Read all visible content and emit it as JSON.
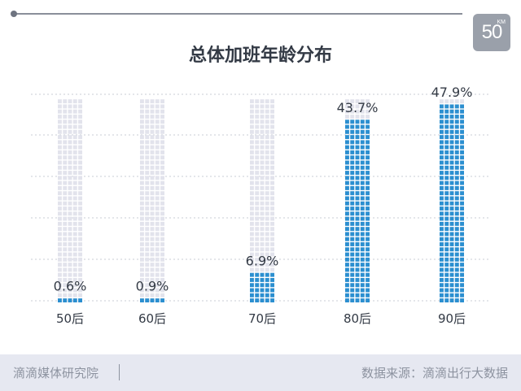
{
  "header": {
    "logo_text": "50",
    "logo_sup": "KM"
  },
  "chart_data": {
    "type": "bar",
    "title": "总体加班年龄分布",
    "categories": [
      "50后",
      "60后",
      "70后",
      "80后",
      "90后"
    ],
    "values": [
      0.6,
      0.9,
      6.9,
      43.7,
      47.9
    ],
    "value_labels": [
      "0.6%",
      "0.9%",
      "6.9%",
      "43.7%",
      "47.9%"
    ],
    "unit": "%",
    "ylim": [
      0,
      50
    ],
    "grid": true,
    "colors": {
      "bar": "#2b8fd0",
      "bar_highlight": "#1a9fd6",
      "track": "#e2e3ec",
      "grid": "#c9ccd6"
    }
  },
  "footer": {
    "left": "滴滴媒体研究院",
    "right": "数据来源：滴滴出行大数据"
  }
}
